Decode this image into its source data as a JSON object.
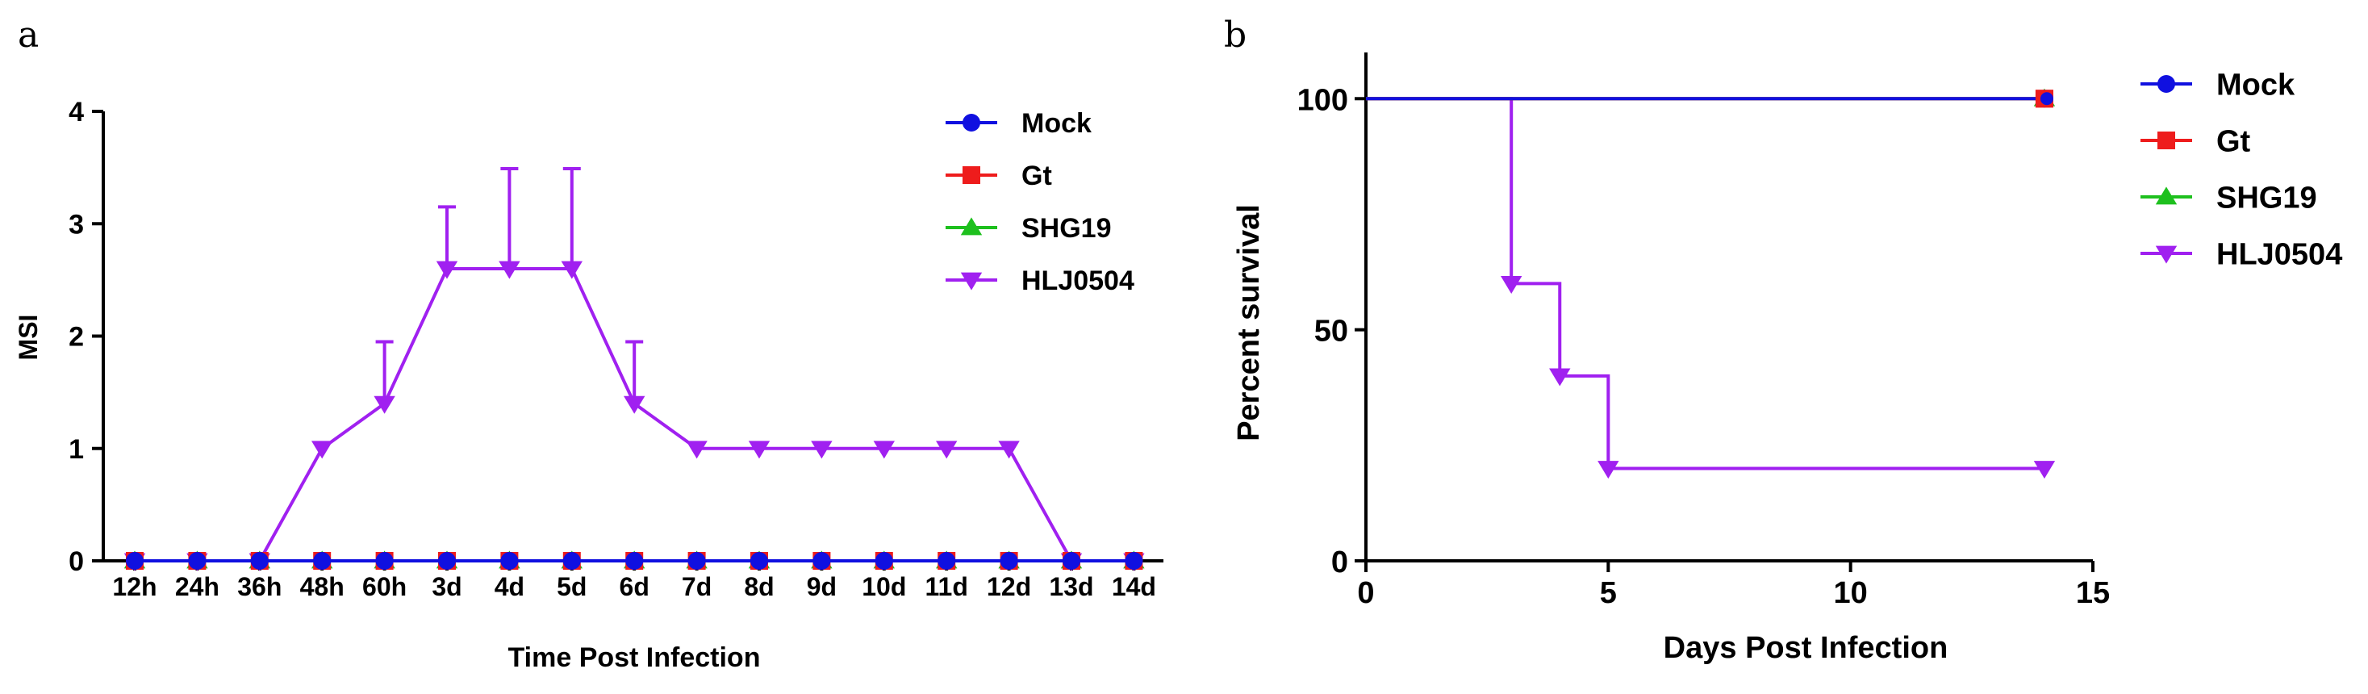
{
  "panels": {
    "a": {
      "label": "a"
    },
    "b": {
      "label": "b"
    }
  },
  "colors": {
    "Mock": "#1010e0",
    "Gt": "#ee1c1c",
    "SHG19": "#1ec01e",
    "HLJ0504": "#a020f0",
    "axis": "#000000"
  },
  "chart_data": [
    {
      "panel": "a",
      "type": "line",
      "title": "",
      "xlabel": "Time Post Infection",
      "ylabel": "MSI",
      "categories": [
        "12h",
        "24h",
        "36h",
        "48h",
        "60h",
        "3d",
        "4d",
        "5d",
        "6d",
        "7d",
        "8d",
        "9d",
        "10d",
        "11d",
        "12d",
        "13d",
        "14d"
      ],
      "yticks": [
        0,
        1,
        2,
        3,
        4
      ],
      "ylim": [
        0,
        4
      ],
      "legend": "top-right",
      "series": [
        {
          "name": "Mock",
          "marker": "circle",
          "values": [
            0,
            0,
            0,
            0,
            0,
            0,
            0,
            0,
            0,
            0,
            0,
            0,
            0,
            0,
            0,
            0,
            0
          ]
        },
        {
          "name": "Gt",
          "marker": "square",
          "values": [
            0,
            0,
            0,
            0,
            0,
            0,
            0,
            0,
            0,
            0,
            0,
            0,
            0,
            0,
            0,
            0,
            0
          ]
        },
        {
          "name": "SHG19",
          "marker": "triangle-up",
          "values": [
            0,
            0,
            0,
            0,
            0,
            0,
            0,
            0,
            0,
            0,
            0,
            0,
            0,
            0,
            0,
            0,
            0
          ]
        },
        {
          "name": "HLJ0504",
          "marker": "triangle-down",
          "values": [
            0,
            0,
            0,
            1,
            1.4,
            2.6,
            2.6,
            2.6,
            1.4,
            1,
            1,
            1,
            1,
            1,
            1,
            0,
            0
          ],
          "error_plus": [
            0,
            0,
            0,
            0,
            0.55,
            0.55,
            0.89,
            0.89,
            0.55,
            0,
            0,
            0,
            0,
            0,
            0,
            0,
            0
          ]
        }
      ]
    },
    {
      "panel": "b",
      "type": "line",
      "subtype": "survival-step",
      "title": "",
      "xlabel": "Days Post Infection",
      "ylabel": "Percent survival",
      "xticks": [
        0,
        5,
        10,
        15
      ],
      "yticks": [
        0,
        50,
        100
      ],
      "xlim": [
        0,
        15
      ],
      "ylim": [
        0,
        110
      ],
      "legend": "top-right",
      "series": [
        {
          "name": "Mock",
          "marker": "circle",
          "steps": [
            [
              0,
              100
            ],
            [
              14,
              100
            ]
          ],
          "markers": [
            [
              14,
              100
            ]
          ]
        },
        {
          "name": "Gt",
          "marker": "square",
          "steps": [
            [
              0,
              100
            ],
            [
              14,
              100
            ]
          ],
          "markers": [
            [
              14,
              100
            ]
          ]
        },
        {
          "name": "SHG19",
          "marker": "triangle-up",
          "steps": [
            [
              0,
              100
            ],
            [
              14,
              100
            ]
          ],
          "markers": [
            [
              14,
              100
            ]
          ]
        },
        {
          "name": "HLJ0504",
          "marker": "triangle-down",
          "steps": [
            [
              0,
              100
            ],
            [
              3,
              100
            ],
            [
              3,
              60
            ],
            [
              4,
              60
            ],
            [
              4,
              40
            ],
            [
              5,
              40
            ],
            [
              5,
              20
            ],
            [
              14,
              20
            ]
          ],
          "markers": [
            [
              3,
              60
            ],
            [
              4,
              40
            ],
            [
              5,
              20
            ],
            [
              14,
              20
            ]
          ]
        }
      ]
    }
  ]
}
